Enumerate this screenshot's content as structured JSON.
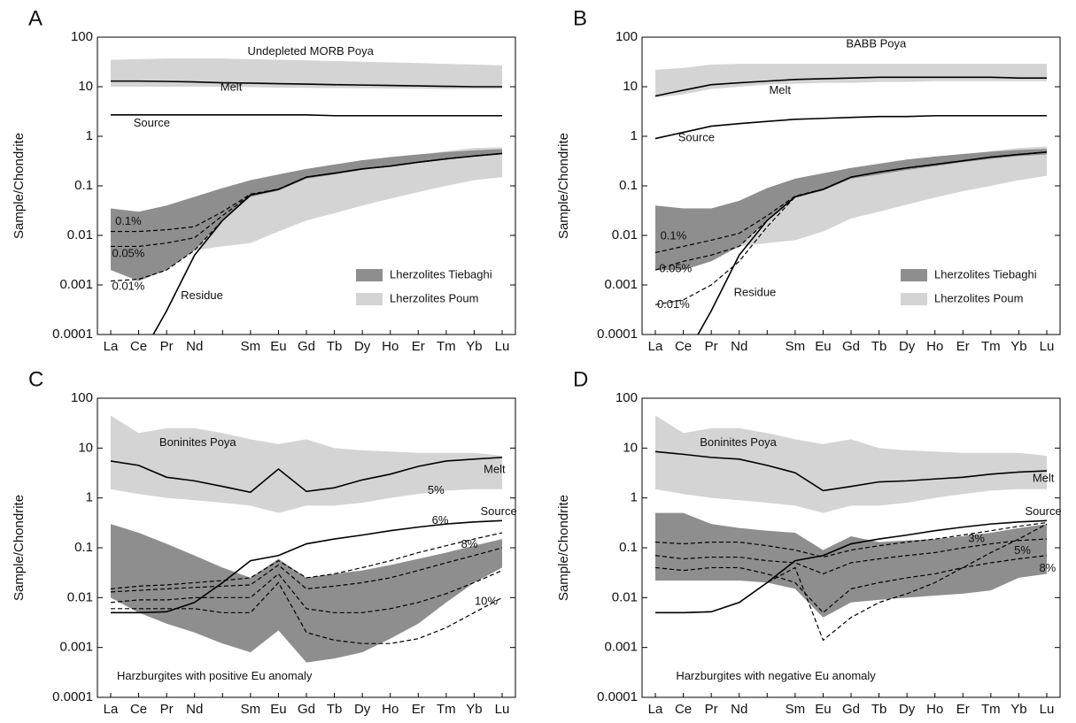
{
  "chart_data": [
    {
      "type": "line",
      "panel": "A",
      "ylabel": "Sample/Chondrite",
      "log_scale": true,
      "ylim": [
        0.0001,
        100
      ],
      "yticks": [
        0.0001,
        0.001,
        0.01,
        0.1,
        1,
        10,
        100
      ],
      "categories": [
        "La",
        "Ce",
        "Pr",
        "Nd",
        null,
        "Sm",
        "Eu",
        "Gd",
        "Tb",
        "Dy",
        "Ho",
        "Er",
        "Tm",
        "Yb",
        "Lu"
      ],
      "legend": "lower right",
      "bands": [
        {
          "name": "Lherzolites Poum",
          "color": "#d4d4d4",
          "lower": [
            0.006,
            0.004,
            0.004,
            0.005,
            0.006,
            0.007,
            0.012,
            0.02,
            0.028,
            0.04,
            0.055,
            0.075,
            0.1,
            0.13,
            0.15
          ],
          "upper": [
            0.035,
            0.02,
            0.02,
            0.03,
            0.05,
            0.09,
            0.13,
            0.18,
            0.24,
            0.3,
            0.35,
            0.42,
            0.5,
            0.58,
            0.6
          ]
        },
        {
          "name": "Lherzolites Tiebaghi",
          "color": "#8e8e8e",
          "lower": [
            0.002,
            0.0012,
            0.002,
            0.005,
            0.02,
            0.06,
            0.08,
            0.14,
            0.17,
            0.21,
            0.25,
            0.3,
            0.35,
            0.4,
            0.43
          ],
          "upper": [
            0.035,
            0.03,
            0.04,
            0.06,
            0.09,
            0.13,
            0.17,
            0.22,
            0.27,
            0.33,
            0.38,
            0.43,
            0.48,
            0.52,
            0.55
          ]
        },
        {
          "label": "Undepleted MORB Poya",
          "color": "#d4d4d4",
          "lower": [
            10,
            10,
            10,
            10,
            10,
            9.8,
            9.6,
            9.5,
            9.4,
            9.3,
            9.2,
            9.1,
            9,
            9,
            9
          ],
          "upper": [
            35,
            36,
            37,
            37,
            37,
            36,
            35,
            34,
            33,
            32,
            31,
            30,
            29,
            28,
            27
          ]
        }
      ],
      "series": [
        {
          "label": "Melt",
          "color": "#000000",
          "dash": false,
          "values": [
            13,
            13,
            12.8,
            12.5,
            12,
            11.8,
            11.5,
            11.3,
            11,
            10.8,
            10.6,
            10.4,
            10.2,
            10,
            10
          ]
        },
        {
          "label": "Source",
          "color": "#000000",
          "dash": false,
          "values": [
            2.7,
            2.7,
            2.7,
            2.7,
            2.7,
            2.7,
            2.7,
            2.7,
            2.6,
            2.6,
            2.6,
            2.6,
            2.6,
            2.6,
            2.6
          ]
        },
        {
          "label": "Residue",
          "color": "#000000",
          "dash": false,
          "values": [
            1e-05,
            3e-05,
            0.0003,
            0.004,
            0.02,
            0.065,
            0.085,
            0.15,
            0.18,
            0.22,
            0.25,
            0.3,
            0.35,
            0.4,
            0.45
          ]
        },
        {
          "label": "0.1%",
          "color": "#000000",
          "dash": true,
          "values": [
            0.012,
            0.012,
            0.013,
            0.015,
            0.03,
            0.068,
            0.086,
            0.15,
            0.18,
            0.22,
            0.25,
            0.3,
            0.35,
            0.4,
            0.45
          ]
        },
        {
          "label": "0.05%",
          "color": "#000000",
          "dash": true,
          "values": [
            0.006,
            0.006,
            0.007,
            0.009,
            0.025,
            0.066,
            0.085,
            0.15,
            0.18,
            0.22,
            0.25,
            0.3,
            0.35,
            0.4,
            0.45
          ]
        },
        {
          "label": "0.01%",
          "color": "#000000",
          "dash": true,
          "values": [
            0.0012,
            0.0013,
            0.002,
            0.005,
            0.02,
            0.065,
            0.085,
            0.15,
            0.18,
            0.22,
            0.25,
            0.3,
            0.35,
            0.4,
            0.45
          ]
        }
      ]
    },
    {
      "type": "line",
      "panel": "B",
      "ylabel": "Sample/Chondrite",
      "log_scale": true,
      "ylim": [
        0.0001,
        100
      ],
      "yticks": [
        0.0001,
        0.001,
        0.01,
        0.1,
        1,
        10,
        100
      ],
      "categories": [
        "La",
        "Ce",
        "Pr",
        "Nd",
        null,
        "Sm",
        "Eu",
        "Gd",
        "Tb",
        "Dy",
        "Ho",
        "Er",
        "Tm",
        "Yb",
        "Lu"
      ],
      "legend": "lower right",
      "bands": [
        {
          "name": "Lherzolites Poum",
          "color": "#d4d4d4",
          "lower": [
            0.012,
            0.008,
            0.006,
            0.006,
            0.007,
            0.008,
            0.012,
            0.022,
            0.03,
            0.042,
            0.058,
            0.078,
            0.1,
            0.13,
            0.16
          ],
          "upper": [
            0.04,
            0.025,
            0.02,
            0.03,
            0.05,
            0.09,
            0.13,
            0.18,
            0.24,
            0.3,
            0.36,
            0.43,
            0.5,
            0.58,
            0.62
          ]
        },
        {
          "name": "Lherzolites Tiebaghi",
          "color": "#8e8e8e",
          "lower": [
            0.002,
            0.002,
            0.003,
            0.006,
            0.02,
            0.06,
            0.08,
            0.14,
            0.17,
            0.21,
            0.25,
            0.3,
            0.35,
            0.4,
            0.43
          ],
          "upper": [
            0.04,
            0.035,
            0.035,
            0.05,
            0.09,
            0.14,
            0.18,
            0.23,
            0.28,
            0.34,
            0.39,
            0.44,
            0.49,
            0.53,
            0.56
          ]
        },
        {
          "label": "BABB Poya",
          "color": "#d4d4d4",
          "lower": [
            6,
            7,
            9,
            10,
            11,
            11.5,
            12,
            12,
            12.5,
            12.5,
            13,
            13,
            13,
            13,
            13
          ],
          "upper": [
            22,
            24,
            28,
            29,
            29,
            29,
            29,
            29,
            29,
            29,
            29,
            29,
            29,
            29,
            29
          ]
        }
      ],
      "series": [
        {
          "label": "Melt",
          "color": "#000000",
          "dash": false,
          "values": [
            6.5,
            8.5,
            11,
            12,
            13,
            14,
            14.5,
            15,
            15.5,
            15.5,
            15.5,
            15.5,
            15.5,
            15,
            15
          ]
        },
        {
          "label": "Source",
          "color": "#000000",
          "dash": false,
          "values": [
            0.9,
            1.2,
            1.6,
            1.8,
            2,
            2.2,
            2.3,
            2.4,
            2.5,
            2.5,
            2.6,
            2.6,
            2.6,
            2.6,
            2.6
          ]
        },
        {
          "label": "Residue",
          "color": "#000000",
          "dash": false,
          "values": [
            1e-05,
            3e-05,
            0.0003,
            0.004,
            0.02,
            0.06,
            0.085,
            0.15,
            0.19,
            0.23,
            0.27,
            0.32,
            0.38,
            0.43,
            0.48
          ]
        },
        {
          "label": "0.1%",
          "color": "#000000",
          "dash": true,
          "values": [
            0.0045,
            0.006,
            0.008,
            0.011,
            0.025,
            0.062,
            0.086,
            0.15,
            0.19,
            0.23,
            0.27,
            0.32,
            0.38,
            0.43,
            0.48
          ]
        },
        {
          "label": "0.05%",
          "color": "#000000",
          "dash": true,
          "values": [
            0.002,
            0.003,
            0.004,
            0.006,
            0.02,
            0.06,
            0.085,
            0.15,
            0.19,
            0.23,
            0.27,
            0.32,
            0.38,
            0.43,
            0.48
          ]
        },
        {
          "label": "0.01%",
          "color": "#000000",
          "dash": true,
          "values": [
            0.0004,
            0.0005,
            0.001,
            0.003,
            0.015,
            0.06,
            0.085,
            0.15,
            0.19,
            0.23,
            0.27,
            0.32,
            0.38,
            0.43,
            0.48
          ]
        }
      ]
    },
    {
      "type": "line",
      "panel": "C",
      "ylabel": "Sample/Chondrite",
      "log_scale": true,
      "ylim": [
        0.0001,
        100
      ],
      "yticks": [
        0.0001,
        0.001,
        0.01,
        0.1,
        1,
        10,
        100
      ],
      "categories": [
        "La",
        "Ce",
        "Pr",
        "Nd",
        null,
        "Sm",
        "Eu",
        "Gd",
        "Tb",
        "Dy",
        "Ho",
        "Er",
        "Tm",
        "Yb",
        "Lu"
      ],
      "bands": [
        {
          "label": "Boninites Poya",
          "color": "#d4d4d4",
          "lower": [
            1.5,
            1.2,
            1,
            0.9,
            0.8,
            0.7,
            0.5,
            0.7,
            0.7,
            0.8,
            1,
            1.2,
            1.4,
            1.5,
            1.5
          ],
          "upper": [
            45,
            20,
            25,
            25,
            20,
            15,
            12,
            15,
            10,
            9,
            8.5,
            8,
            8,
            8,
            7
          ]
        },
        {
          "label": "Harzburgites with positive Eu anomaly",
          "color": "#8e8e8e",
          "lower": [
            0.01,
            0.005,
            0.003,
            0.002,
            0.0012,
            0.0008,
            0.0022,
            0.0005,
            0.0006,
            0.0008,
            0.0015,
            0.003,
            0.008,
            0.02,
            0.04
          ],
          "upper": [
            0.3,
            0.2,
            0.12,
            0.07,
            0.04,
            0.025,
            0.06,
            0.025,
            0.03,
            0.035,
            0.045,
            0.06,
            0.08,
            0.11,
            0.15
          ]
        }
      ],
      "series": [
        {
          "label": "Melt",
          "color": "#000000",
          "dash": false,
          "values": [
            5.5,
            4.5,
            2.6,
            2.2,
            1.7,
            1.3,
            3.8,
            1.35,
            1.6,
            2.3,
            3,
            4.3,
            5.5,
            6,
            6.5
          ]
        },
        {
          "label": "Source",
          "color": "#000000",
          "dash": false,
          "values": [
            0.005,
            0.005,
            0.0052,
            0.008,
            0.02,
            0.055,
            0.07,
            0.12,
            0.15,
            0.18,
            0.22,
            0.26,
            0.3,
            0.33,
            0.35
          ]
        },
        {
          "label": "5%",
          "color": "#000000",
          "dash": true,
          "values": [
            0.015,
            0.017,
            0.018,
            0.02,
            0.022,
            0.025,
            0.055,
            0.025,
            0.03,
            0.04,
            0.055,
            0.08,
            0.11,
            0.15,
            0.2
          ]
        },
        {
          "label": "6%",
          "color": "#000000",
          "dash": true,
          "values": [
            0.013,
            0.014,
            0.015,
            0.016,
            0.017,
            0.018,
            0.045,
            0.015,
            0.017,
            0.02,
            0.025,
            0.035,
            0.05,
            0.07,
            0.1
          ]
        },
        {
          "label": "8%",
          "color": "#000000",
          "dash": true,
          "values": [
            0.008,
            0.009,
            0.009,
            0.01,
            0.01,
            0.01,
            0.03,
            0.006,
            0.005,
            0.005,
            0.006,
            0.008,
            0.012,
            0.02,
            0.035
          ]
        },
        {
          "label": "10%",
          "color": "#000000",
          "dash": true,
          "values": [
            0.006,
            0.006,
            0.006,
            0.006,
            0.005,
            0.005,
            0.02,
            0.002,
            0.0014,
            0.0012,
            0.0012,
            0.0015,
            0.0025,
            0.005,
            0.01
          ]
        }
      ]
    },
    {
      "type": "line",
      "panel": "D",
      "ylabel": "Sample/Chondrite",
      "log_scale": true,
      "ylim": [
        0.0001,
        100
      ],
      "yticks": [
        0.0001,
        0.001,
        0.01,
        0.1,
        1,
        10,
        100
      ],
      "categories": [
        "La",
        "Ce",
        "Pr",
        "Nd",
        null,
        "Sm",
        "Eu",
        "Gd",
        "Tb",
        "Dy",
        "Ho",
        "Er",
        "Tm",
        "Yb",
        "Lu"
      ],
      "bands": [
        {
          "label": "Boninites Poya",
          "color": "#d4d4d4",
          "lower": [
            1.5,
            1.2,
            1,
            0.9,
            0.8,
            0.7,
            0.5,
            0.7,
            0.7,
            0.8,
            1,
            1.2,
            1.4,
            1.5,
            1.5
          ],
          "upper": [
            45,
            20,
            25,
            25,
            20,
            15,
            12,
            15,
            10,
            9,
            8.5,
            8,
            8,
            8,
            7
          ]
        },
        {
          "label": "Harzburgites with negative Eu anomaly",
          "color": "#8e8e8e",
          "lower": [
            0.022,
            0.022,
            0.022,
            0.022,
            0.02,
            0.015,
            0.004,
            0.008,
            0.009,
            0.01,
            0.011,
            0.012,
            0.014,
            0.025,
            0.03
          ],
          "upper": [
            0.5,
            0.5,
            0.3,
            0.25,
            0.22,
            0.2,
            0.09,
            0.17,
            0.13,
            0.14,
            0.15,
            0.17,
            0.2,
            0.25,
            0.3
          ]
        }
      ],
      "series": [
        {
          "label": "Melt",
          "color": "#000000",
          "dash": false,
          "values": [
            8.5,
            7.5,
            6.5,
            6,
            4.5,
            3.2,
            1.4,
            1.7,
            2.1,
            2.2,
            2.4,
            2.6,
            3,
            3.3,
            3.5
          ]
        },
        {
          "label": "Source",
          "color": "#000000",
          "dash": false,
          "values": [
            0.005,
            0.005,
            0.0052,
            0.008,
            0.02,
            0.055,
            0.07,
            0.12,
            0.15,
            0.18,
            0.22,
            0.26,
            0.3,
            0.33,
            0.35
          ]
        },
        {
          "label": "3%",
          "color": "#000000",
          "dash": true,
          "values": [
            0.13,
            0.12,
            0.13,
            0.13,
            0.11,
            0.09,
            0.065,
            0.09,
            0.11,
            0.13,
            0.15,
            0.18,
            0.22,
            0.27,
            0.32
          ]
        },
        {
          "label": "5%",
          "color": "#000000",
          "dash": true,
          "values": [
            0.07,
            0.06,
            0.065,
            0.065,
            0.055,
            0.05,
            0.03,
            0.05,
            0.06,
            0.07,
            0.08,
            0.1,
            0.12,
            0.14,
            0.15
          ]
        },
        {
          "label": "8%",
          "color": "#000000",
          "dash": true,
          "values": [
            0.04,
            0.035,
            0.04,
            0.04,
            0.03,
            0.02,
            0.005,
            0.015,
            0.02,
            0.025,
            0.03,
            0.04,
            0.05,
            0.06,
            0.07
          ]
        },
        {
          "color": "#000000",
          "dash": true,
          "values": [
            0.005,
            0.005,
            0.0052,
            0.008,
            0.02,
            0.04,
            0.0014,
            0.004,
            0.008,
            0.012,
            0.02,
            0.04,
            0.08,
            0.15,
            0.3
          ]
        }
      ]
    }
  ]
}
